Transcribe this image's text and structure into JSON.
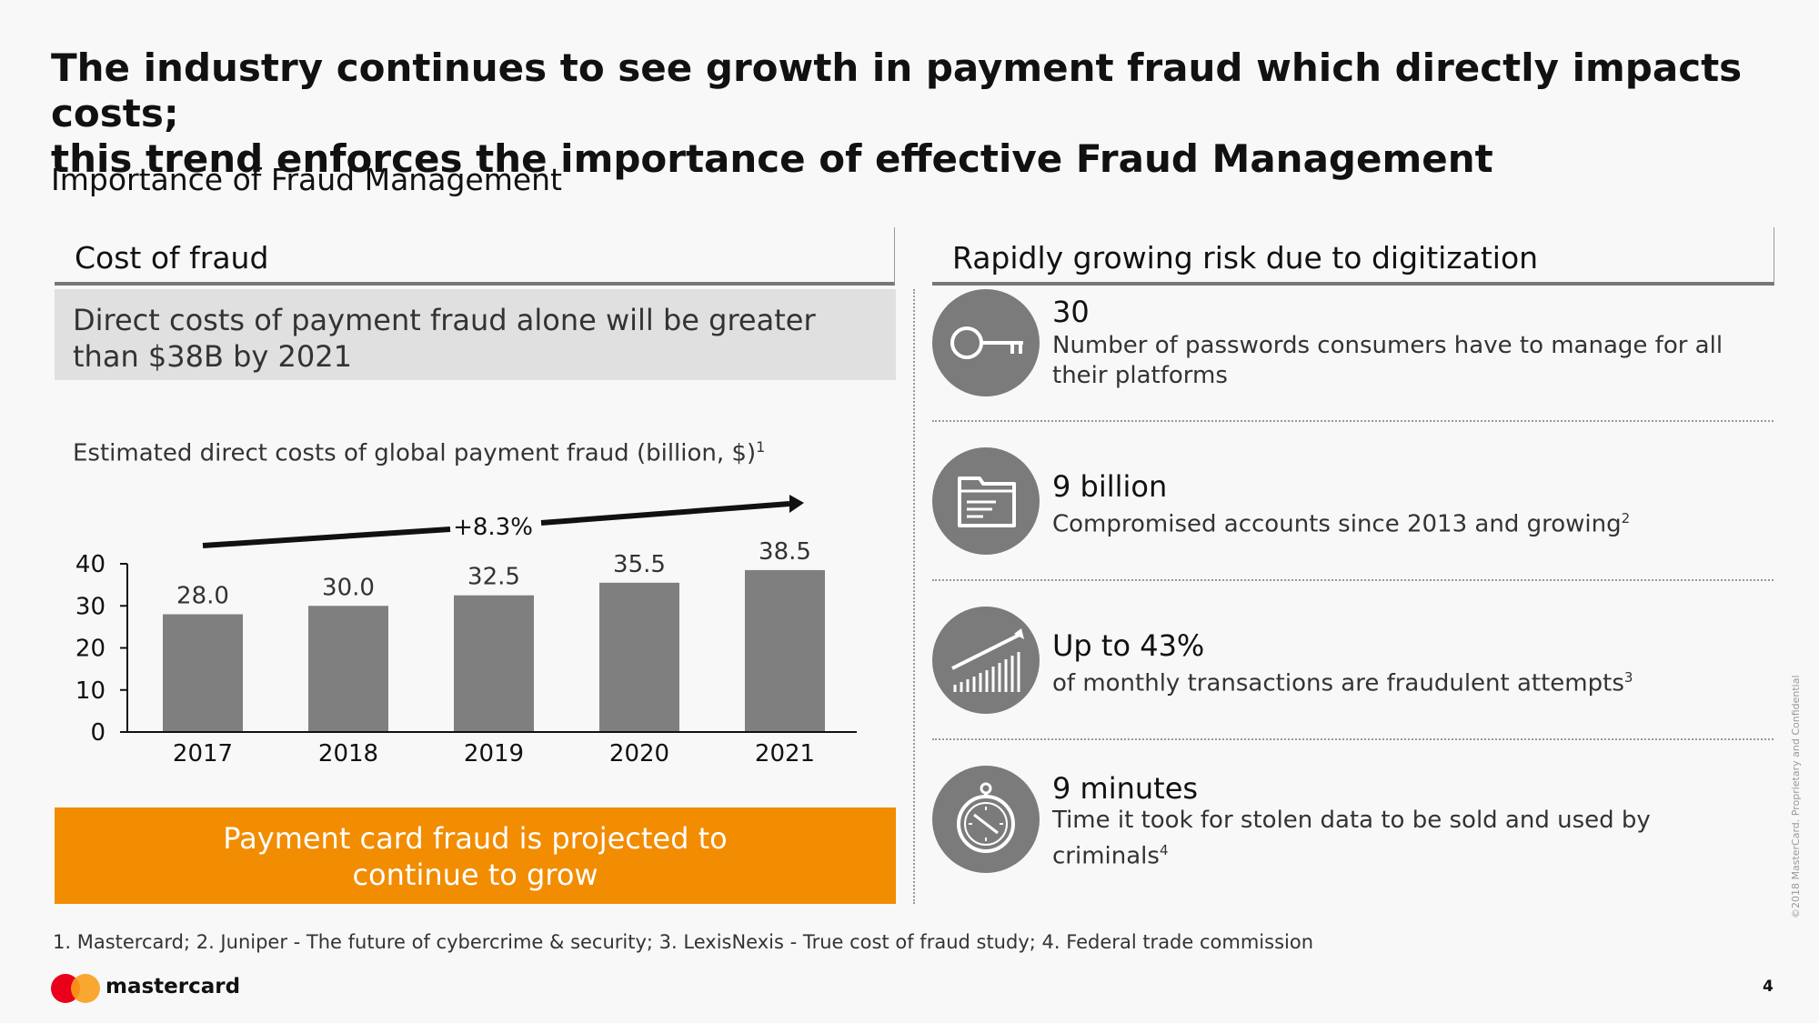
{
  "title_line1": "The industry continues to see growth in payment fraud which directly impacts costs;",
  "title_line2": "this trend enforces the importance of effective Fraud Management",
  "subtitle": "Importance of Fraud Management",
  "left_panel": {
    "heading": "Cost of fraud",
    "callout_line1": "Direct costs of payment fraud alone will be greater",
    "callout_line2": "than $38B by 2021",
    "chart_caption": "Estimated direct costs of global payment fraud (billion, $)",
    "chart_caption_note": "1",
    "growth_label": "+8.3%",
    "banner_line1": "Payment card fraud is projected to",
    "banner_line2": "continue to grow"
  },
  "chart_data": {
    "type": "bar",
    "title": "Estimated direct costs of global payment fraud (billion, $)",
    "categories": [
      "2017",
      "2018",
      "2019",
      "2020",
      "2021"
    ],
    "values": [
      28.0,
      30.0,
      32.5,
      35.5,
      38.5
    ],
    "data_labels": [
      "28.0",
      "30.0",
      "32.5",
      "35.5",
      "38.5"
    ],
    "ylim": [
      0,
      40
    ],
    "yticks": [
      0,
      10,
      20,
      30,
      40
    ],
    "bar_color": "#7f7f7f",
    "annotation": "+8.3%",
    "grid": false,
    "legend": "none"
  },
  "right_panel": {
    "heading": "Rapidly growing risk due to digitization",
    "items": [
      {
        "icon": "key-icon",
        "value": "30",
        "description": "Number of passwords consumers have to manage for all their platforms",
        "note": ""
      },
      {
        "icon": "folder-document-icon",
        "value": "9 billion",
        "description": "Compromised accounts since 2013 and growing",
        "note": "2"
      },
      {
        "icon": "growth-chart-icon",
        "value": "Up to 43%",
        "description": "of monthly transactions are fraudulent attempts",
        "note": "3"
      },
      {
        "icon": "stopwatch-icon",
        "value": "9 minutes",
        "description": "Time it took for stolen data to be sold and used by criminals",
        "note": "4"
      }
    ]
  },
  "footnote": "1. Mastercard; 2. Juniper - The future of cybercrime & security; 3. LexisNexis - True cost of fraud study; 4. Federal trade commission",
  "brand": "mastercard",
  "page_number": "4",
  "copyright": "©2018 MasterCard. Proprietary and Confidential",
  "colors": {
    "accent": "#f28c00",
    "bar": "#7f7f7f",
    "icon_bg": "#7b7b7b",
    "logo_red": "#eb001b",
    "logo_yellow": "#f79e1b"
  }
}
